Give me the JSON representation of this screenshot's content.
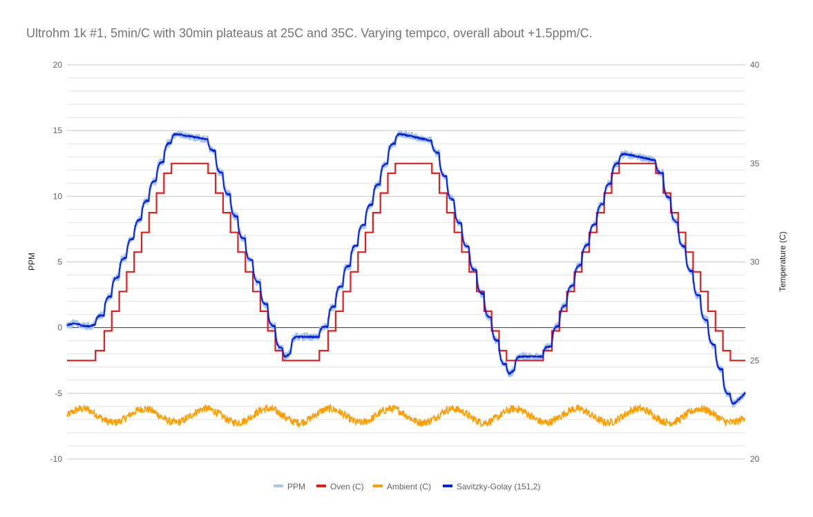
{
  "chart_data": {
    "type": "line",
    "title": "Ultrohm 1k #1, 5min/C with 30min plateaus at 25C and 35C.  Varying tempco, overall about +1.5ppm/C.",
    "ylabel": "PPM",
    "y2label": "Temperature (C)",
    "xlabel": "",
    "ylim": [
      -10,
      20
    ],
    "y2lim": [
      20,
      40
    ],
    "y_ticks": [
      "20",
      "15",
      "10",
      "5",
      "0",
      "-5",
      "-10"
    ],
    "y2_ticks": [
      "40",
      "35",
      "30",
      "25",
      "20"
    ],
    "grid": true,
    "legend_position": "bottom",
    "colors": {
      "ppm": "#a4c6ec",
      "oven": "#e81a1a",
      "ambient": "#ff9d00",
      "sg": "#0a1fe0",
      "grid": "#d0d0d0",
      "zero": "#333333"
    },
    "x_range": [
      0,
      1000
    ],
    "cycle_starts": [
      0,
      330,
      660
    ],
    "series": [
      {
        "name": "PPM",
        "axis": "left",
        "color": "#a4c6ec",
        "description": "raw measurement, noisy around Savitzky-Golay curve"
      },
      {
        "name": "Oven (C)",
        "axis": "right",
        "color": "#e81a1a",
        "profile": [
          [
            0,
            25
          ],
          [
            42,
            25
          ],
          [
            42,
            25.5
          ],
          [
            55,
            25.5
          ],
          [
            55,
            26.5
          ],
          [
            66,
            26.5
          ],
          [
            66,
            27.5
          ],
          [
            77,
            27.5
          ],
          [
            77,
            28.5
          ],
          [
            88,
            28.5
          ],
          [
            88,
            29.5
          ],
          [
            99,
            29.5
          ],
          [
            99,
            30.5
          ],
          [
            110,
            30.5
          ],
          [
            110,
            31.5
          ],
          [
            121,
            31.5
          ],
          [
            121,
            32.5
          ],
          [
            132,
            32.5
          ],
          [
            132,
            33.5
          ],
          [
            143,
            33.5
          ],
          [
            143,
            34.5
          ],
          [
            154,
            34.5
          ],
          [
            154,
            35
          ],
          [
            208,
            35
          ],
          [
            208,
            34.5
          ],
          [
            219,
            34.5
          ],
          [
            219,
            33.5
          ],
          [
            230,
            33.5
          ],
          [
            230,
            32.5
          ],
          [
            241,
            32.5
          ],
          [
            241,
            31.5
          ],
          [
            252,
            31.5
          ],
          [
            252,
            30.5
          ],
          [
            263,
            30.5
          ],
          [
            263,
            29.5
          ],
          [
            274,
            29.5
          ],
          [
            274,
            28.5
          ],
          [
            285,
            28.5
          ],
          [
            285,
            27.5
          ],
          [
            296,
            27.5
          ],
          [
            296,
            26.5
          ],
          [
            307,
            26.5
          ],
          [
            307,
            25.5
          ],
          [
            318,
            25.5
          ],
          [
            318,
            25
          ],
          [
            330,
            25
          ]
        ]
      },
      {
        "name": "Ambient (C)",
        "axis": "right",
        "color": "#ff9d00",
        "mean": 22.2,
        "amplitude": 0.35,
        "noise": 0.25
      },
      {
        "name": "Savitzky-Golay (151,2)",
        "axis": "left",
        "color": "#0a1fe0",
        "cycles": [
          {
            "start_ppm": 0.2,
            "peak_ppm": 14.8,
            "plateau_end_ppm": 14.3,
            "end_ppm": -2.4,
            "settle_ppm": -0.7
          },
          {
            "start_ppm": -0.7,
            "peak_ppm": 14.8,
            "plateau_end_ppm": 14.2,
            "end_ppm": -3.7,
            "settle_ppm": -2.2
          },
          {
            "start_ppm": -2.2,
            "peak_ppm": 13.3,
            "plateau_end_ppm": 12.7,
            "end_ppm": -6.0,
            "settle_ppm": -4.6
          }
        ]
      }
    ],
    "legend": [
      "PPM",
      "Oven (C)",
      "Ambient (C)",
      "Savitzky-Golay (151,2)"
    ]
  }
}
